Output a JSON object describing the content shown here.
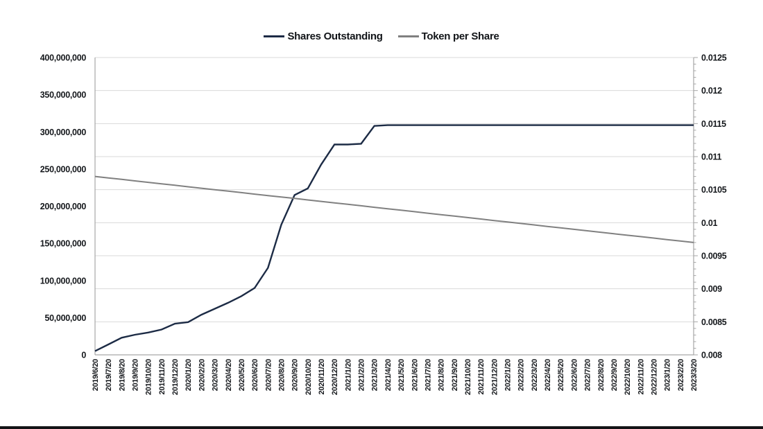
{
  "page": {
    "background": "#ffffff",
    "bottom_bar_color": "#131316"
  },
  "legend": {
    "items": [
      {
        "label": "Shares Outstanding",
        "color": "#1c2b45"
      },
      {
        "label": "Token per Share",
        "color": "#808080"
      }
    ]
  },
  "chart_data": {
    "type": "line",
    "title": "",
    "legend_position": "top-center",
    "grid": "horizontal",
    "x": [
      "2019/6/20",
      "2019/7/20",
      "2019/8/20",
      "2019/9/20",
      "2019/10/20",
      "2019/11/20",
      "2019/12/20",
      "2020/1/20",
      "2020/2/20",
      "2020/3/20",
      "2020/4/20",
      "2020/5/20",
      "2020/6/20",
      "2020/7/20",
      "2020/8/20",
      "2020/9/20",
      "2020/10/20",
      "2020/11/20",
      "2020/12/20",
      "2021/1/20",
      "2021/2/20",
      "2021/3/20",
      "2021/4/20",
      "2021/5/20",
      "2021/6/20",
      "2021/7/20",
      "2021/8/20",
      "2021/9/20",
      "2021/10/20",
      "2021/11/20",
      "2021/12/20",
      "2022/1/20",
      "2022/2/20",
      "2022/3/20",
      "2022/4/20",
      "2022/5/20",
      "2022/6/20",
      "2022/7/20",
      "2022/8/20",
      "2022/9/20",
      "2022/10/20",
      "2022/11/20",
      "2022/12/20",
      "2023/1/20",
      "2023/2/20",
      "2023/3/20"
    ],
    "series": [
      {
        "name": "Shares Outstanding",
        "axis": "left",
        "color": "#1c2b45",
        "values": [
          5000000,
          14000000,
          23000000,
          27000000,
          30000000,
          34000000,
          42000000,
          44000000,
          54000000,
          62000000,
          70000000,
          79000000,
          90000000,
          117000000,
          175000000,
          215000000,
          224000000,
          256000000,
          283000000,
          283000000,
          284000000,
          308000000,
          309000000,
          309000000,
          309000000,
          309000000,
          309000000,
          309000000,
          309000000,
          309000000,
          309000000,
          309000000,
          309000000,
          309000000,
          309000000,
          309000000,
          309000000,
          309000000,
          309000000,
          309000000,
          309000000,
          309000000,
          309000000,
          309000000,
          309000000,
          309000000
        ]
      },
      {
        "name": "Token per Share",
        "axis": "right",
        "color": "#808080",
        "values": [
          0.0107,
          0.010678,
          0.010656,
          0.010633,
          0.010611,
          0.010589,
          0.010567,
          0.010544,
          0.010522,
          0.0105,
          0.010478,
          0.010456,
          0.010433,
          0.010411,
          0.010389,
          0.010367,
          0.010344,
          0.010322,
          0.0103,
          0.010278,
          0.010256,
          0.010233,
          0.010211,
          0.010189,
          0.010167,
          0.010144,
          0.010122,
          0.0101,
          0.010078,
          0.010056,
          0.010033,
          0.010011,
          0.009989,
          0.009967,
          0.009944,
          0.009922,
          0.0099,
          0.009878,
          0.009856,
          0.009833,
          0.009811,
          0.009789,
          0.009767,
          0.009744,
          0.009722,
          0.0097
        ]
      }
    ],
    "left_axis": {
      "min": 0,
      "max": 400000000,
      "step": 50000000,
      "tick_labels": [
        "0",
        "50,000,000",
        "100,000,000",
        "150,000,000",
        "200,000,000",
        "250,000,000",
        "300,000,000",
        "350,000,000",
        "400,000,000"
      ]
    },
    "right_axis": {
      "min": 0.008,
      "max": 0.0125,
      "step": 0.0005,
      "minor_step": 0.0001,
      "tick_labels": [
        "0.008",
        "0.0085",
        "0.009",
        "0.0095",
        "0.01",
        "0.0105",
        "0.011",
        "0.0115",
        "0.012",
        "0.0125"
      ]
    }
  }
}
